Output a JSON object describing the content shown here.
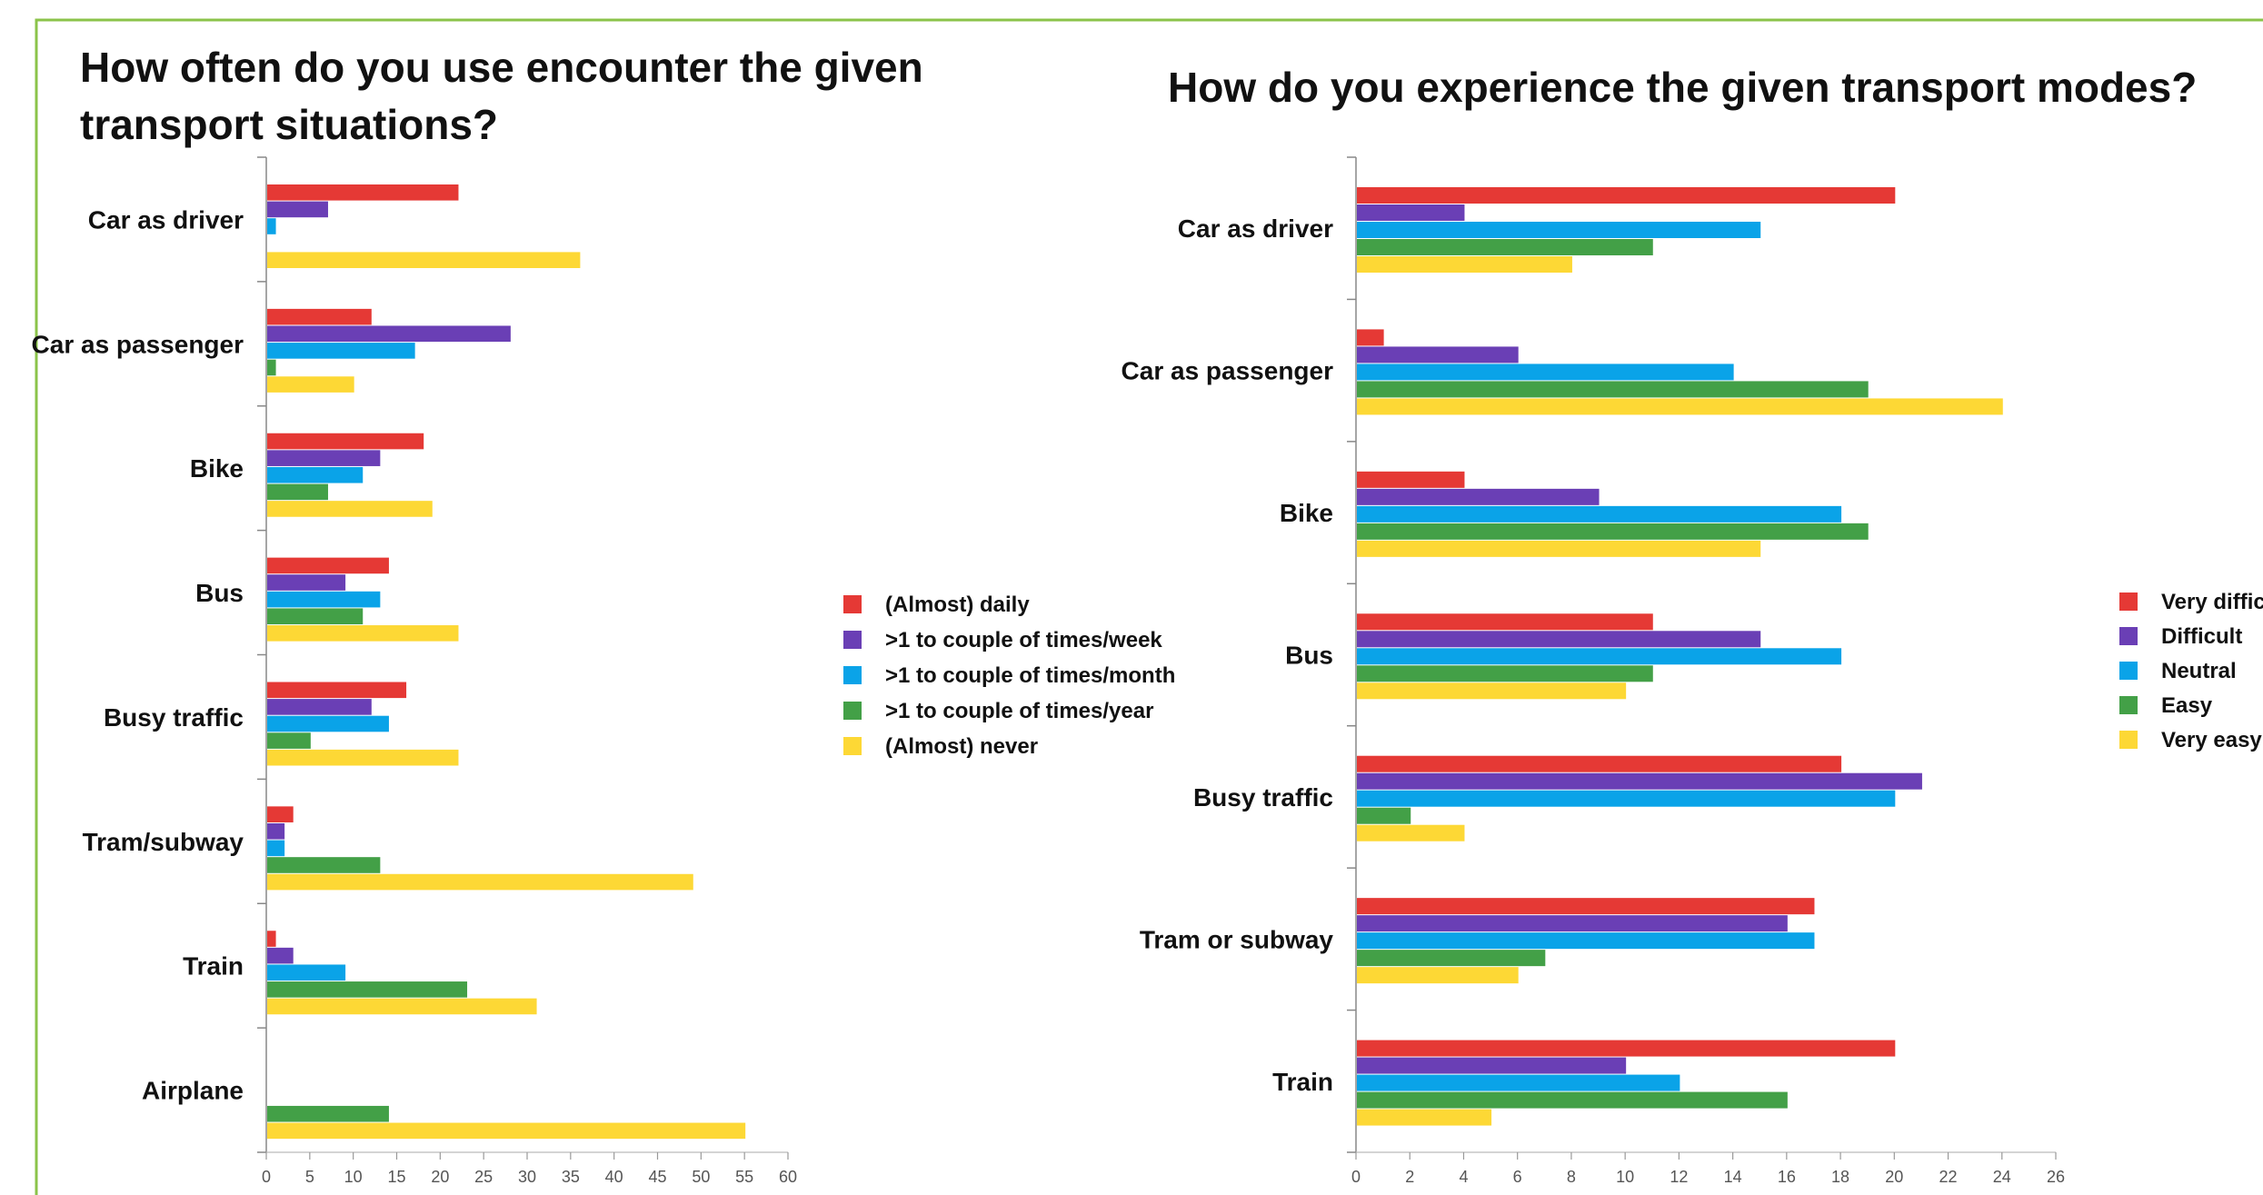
{
  "colors": {
    "red": "#e53935",
    "purple": "#6a3fb5",
    "blue": "#0aa3e8",
    "green": "#43a047",
    "yellow": "#fdd835",
    "border": "#8bc34a"
  },
  "chart_data": [
    {
      "type": "bar",
      "orientation": "horizontal",
      "title_line1": "How often do you use encounter the given",
      "title_line2": "transport situations?",
      "categories": [
        "Car as driver",
        "Car as passenger",
        "Bike",
        "Bus",
        "Busy traffic",
        "Tram/subway",
        "Train",
        "Airplane"
      ],
      "series": [
        {
          "name": "(Almost) daily",
          "color": "#e53935",
          "values": [
            22,
            12,
            18,
            14,
            16,
            3,
            1,
            0
          ]
        },
        {
          "name": ">1 to couple of times/week",
          "color": "#6a3fb5",
          "values": [
            7,
            28,
            13,
            9,
            12,
            2,
            3,
            0
          ]
        },
        {
          "name": ">1 to couple of times/month",
          "color": "#0aa3e8",
          "values": [
            1,
            17,
            11,
            13,
            14,
            2,
            9,
            0
          ]
        },
        {
          "name": ">1 to couple of times/year",
          "color": "#43a047",
          "values": [
            0,
            1,
            7,
            11,
            5,
            13,
            23,
            14
          ]
        },
        {
          "name": "(Almost) never",
          "color": "#fdd835",
          "values": [
            36,
            10,
            19,
            22,
            22,
            49,
            31,
            55
          ]
        }
      ],
      "xlim": [
        0,
        60
      ],
      "xticks": [
        "0",
        "5",
        "10",
        "15",
        "20",
        "25",
        "30",
        "35",
        "40",
        "45",
        "50",
        "55",
        "60"
      ],
      "legend_position": "right"
    },
    {
      "type": "bar",
      "orientation": "horizontal",
      "title": "How do you experience the given transport modes?",
      "categories": [
        "Car as driver",
        "Car as passenger",
        "Bike",
        "Bus",
        "Busy traffic",
        "Tram or subway",
        "Train"
      ],
      "series": [
        {
          "name": "Very difficu",
          "color": "#e53935",
          "values": [
            20,
            1,
            4,
            11,
            18,
            17,
            20
          ]
        },
        {
          "name": "Difficult",
          "color": "#6a3fb5",
          "values": [
            4,
            6,
            9,
            15,
            21,
            16,
            10
          ]
        },
        {
          "name": "Neutral",
          "color": "#0aa3e8",
          "values": [
            15,
            14,
            18,
            18,
            20,
            17,
            12
          ]
        },
        {
          "name": "Easy",
          "color": "#43a047",
          "values": [
            11,
            19,
            19,
            11,
            2,
            7,
            16
          ]
        },
        {
          "name": "Very easy",
          "color": "#fdd835",
          "values": [
            8,
            24,
            15,
            10,
            4,
            6,
            5
          ]
        }
      ],
      "xlim": [
        0,
        26
      ],
      "xticks": [
        "0",
        "2",
        "4",
        "6",
        "8",
        "10",
        "12",
        "14",
        "16",
        "18",
        "20",
        "22",
        "24",
        "26"
      ],
      "legend_position": "right"
    }
  ]
}
